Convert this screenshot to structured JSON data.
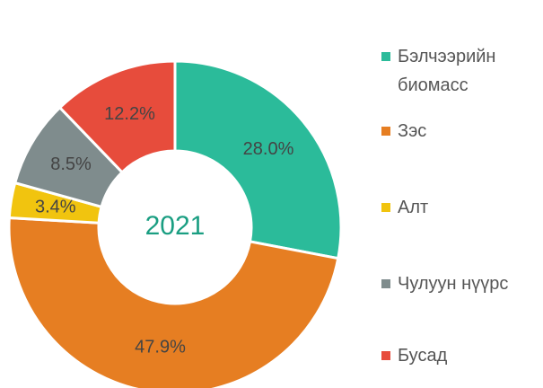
{
  "chart_data": {
    "type": "donut",
    "center_label": "2021",
    "categories": [
      "Бэлчээрийн биомасс",
      "Зэс",
      "Алт",
      "Чулуун нүүрс",
      "Бусад"
    ],
    "values": [
      28.0,
      47.9,
      3.4,
      8.5,
      12.2
    ],
    "value_labels": [
      "28.0%",
      "47.9%",
      "3.4%",
      "8.5%",
      "12.2%"
    ],
    "colors": [
      "#2bbb9a",
      "#e67e22",
      "#f1c40f",
      "#7f8c8d",
      "#e74c3c"
    ],
    "legend": "right"
  }
}
